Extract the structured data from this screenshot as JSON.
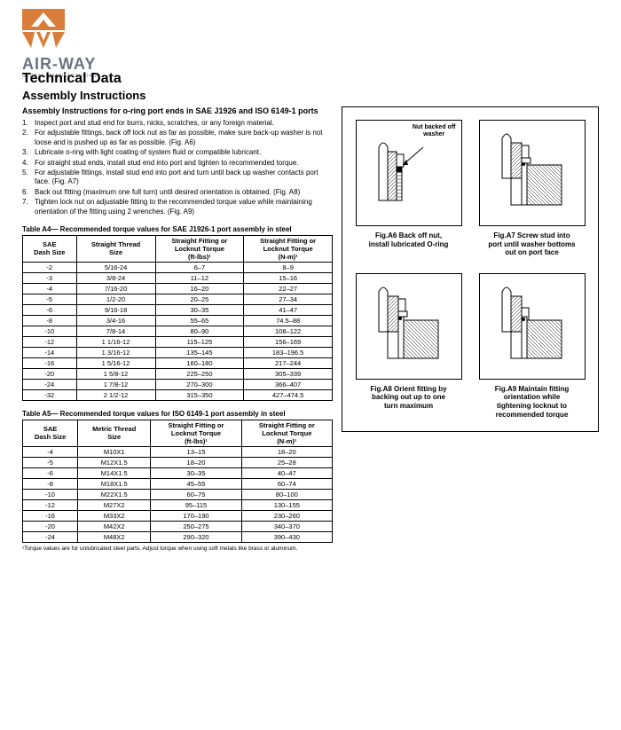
{
  "logo": {
    "brand": "AIR-WAY",
    "tagline": "GLOBAL MANUFACTURING",
    "icon_color": "#d97d3a"
  },
  "header": {
    "h1": "Technical Data",
    "h2": "Assembly Instructions"
  },
  "section": {
    "title": "Assembly Instructions for o-ring port ends in SAE J1926 and ISO 6149-1 ports"
  },
  "instr": [
    "Inspect port and stud end for burrs, nicks, scratches, or any foreign material.",
    "For adjustable fittings, back off lock nut as far as possible, make sure back-up washer is not loose and is pushed up as far as possible. (Fig. A6)",
    "Lubricate o-ring with light coating of system fluid or compatible lubricant.",
    "For straight stud ends, install stud end into port and tighten to recommended torque.",
    "For adjustable fittings, install stud end into port and turn until back up washer contacts port face. (Fig. A7)",
    "Back out fitting (maximum one full turn) until desired orientation is obtained. (Fig. A8)",
    "Tighten lock nut on adjustable fitting to the recommended torque value while maintaining orientation of the fitting using 2 wrenches. (Fig. A9)"
  ],
  "tableA4": {
    "title": "Table A4— Recommended torque values for SAE J1926-1 port assembly in steel",
    "head": [
      "SAE\nDash Size",
      "Straight Thread\nSize",
      "Straight Fitting or\nLocknut Torque\n(ft-lbs)¹",
      "Straight Fitting or\nLocknut Torque\n(N-m)¹"
    ],
    "rows": [
      [
        "-2",
        "5/16-24",
        "6–7",
        "8–9"
      ],
      [
        "-3",
        "3/8-24",
        "11–12",
        "15–16"
      ],
      [
        "-4",
        "7/16-20",
        "16–20",
        "22–27"
      ],
      [
        "-5",
        "1/2-20",
        "20–25",
        "27–34"
      ],
      [
        "-6",
        "9/16-18",
        "30–35",
        "41–47"
      ],
      [
        "-8",
        "3/4-16",
        "55–65",
        "74.5–88"
      ],
      [
        "-10",
        "7/8-14",
        "80–90",
        "108–122"
      ],
      [
        "-12",
        "1 1/16-12",
        "115–125",
        "156–169"
      ],
      [
        "-14",
        "1 3/16-12",
        "135–145",
        "183–196.5"
      ],
      [
        "-16",
        "1 5/16-12",
        "160–180",
        "217–244"
      ],
      [
        "-20",
        "1 5/8-12",
        "225–250",
        "305–339"
      ],
      [
        "-24",
        "1 7/8-12",
        "270–300",
        "366–407"
      ],
      [
        "-32",
        "2 1/2-12",
        "315–350",
        "427–474.5"
      ]
    ]
  },
  "tableA5": {
    "title": "Table A5— Recommended torque values for ISO 6149-1 port assembly in steel",
    "head": [
      "SAE\nDash Size",
      "Metric Thread\nSize",
      "Straight Fitting or\nLocknut Torque\n(ft-lbs)¹",
      "Straight Fitting or\nLocknut Torque\n(N-m)¹"
    ],
    "rows": [
      [
        "-4",
        "M10X1",
        "13–15",
        "18–20"
      ],
      [
        "-5",
        "M12X1.5",
        "18–20",
        "25–28"
      ],
      [
        "-6",
        "M14X1.5",
        "30–35",
        "40–47"
      ],
      [
        "-8",
        "M18X1.5",
        "45–55",
        "60–74"
      ],
      [
        "-10",
        "M22X1.5",
        "60–75",
        "80–100"
      ],
      [
        "-12",
        "M27X2",
        "95–115",
        "130–155"
      ],
      [
        "-16",
        "M33X2",
        "170–190",
        "230–260"
      ],
      [
        "-20",
        "M42X2",
        "250–275",
        "340–370"
      ],
      [
        "-24",
        "M48X2",
        "290–320",
        "390–430"
      ]
    ],
    "footnote": "¹Torque values are for unlubricated steel parts. Adjust torque when using soft metals like brass or aluminum."
  },
  "figs": {
    "callout": "Nut backed off\nwasher",
    "a6": "Fig.A6 Back off nut,\ninstall lubricated O-ring",
    "a7": "Fig.A7 Screw stud into\nport until washer bottoms\nout on port face",
    "a8": "Fig.A8 Orient fitting by\nbacking out up to one\nturn maximum",
    "a9": "Fig.A9 Maintain fitting\norientation while\ntightening locknut to\nrecommended torque"
  },
  "colors": {
    "hatch": "#cccccc",
    "solid": "#000000"
  }
}
